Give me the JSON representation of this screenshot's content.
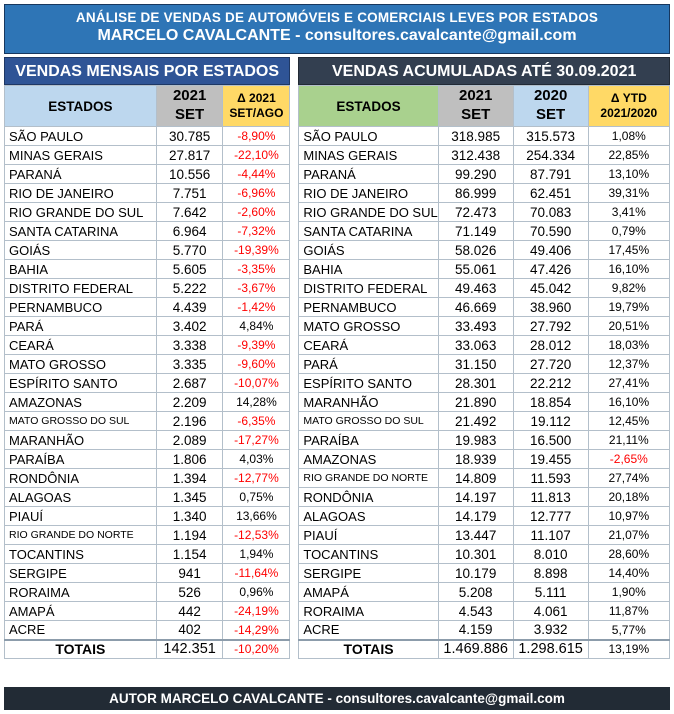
{
  "banner": {
    "line1": "ANÁLISE DE VENDAS DE AUTOMÓVEIS E COMERCIAIS LEVES POR ESTADOS",
    "line2": "MARCELO CAVALCANTE - consultores.cavalcante@gmail.com"
  },
  "footer": {
    "text": "AUTOR MARCELO CAVALCANTE - consultores.cavalcante@gmail.com"
  },
  "colors": {
    "banner_blue": "#2e75b6",
    "left_title_navy": "#2f5496",
    "right_title_slate": "#333f50",
    "footer_dark": "#222b35",
    "header_light_blue": "#bdd7ee",
    "header_gray": "#bfbfbf",
    "header_yellow": "#ffd966",
    "header_green": "#a9d18e",
    "negative_red": "#ff0000"
  },
  "monthly_table": {
    "title": "VENDAS MENSAIS POR ESTADOS",
    "headers": [
      "ESTADOS",
      "2021\nSET",
      "Δ 2021\nSET/AGO"
    ],
    "rows": [
      {
        "state": "SÃO PAULO",
        "v2021": "30.785",
        "delta": "-8,90%"
      },
      {
        "state": "MINAS GERAIS",
        "v2021": "27.817",
        "delta": "-22,10%"
      },
      {
        "state": "PARANÁ",
        "v2021": "10.556",
        "delta": "-4,44%"
      },
      {
        "state": "RIO DE JANEIRO",
        "v2021": "7.751",
        "delta": "-6,96%"
      },
      {
        "state": "RIO GRANDE DO SUL",
        "v2021": "7.642",
        "delta": "-2,60%"
      },
      {
        "state": "SANTA CATARINA",
        "v2021": "6.964",
        "delta": "-7,32%"
      },
      {
        "state": "GOIÁS",
        "v2021": "5.770",
        "delta": "-19,39%"
      },
      {
        "state": "BAHIA",
        "v2021": "5.605",
        "delta": "-3,35%"
      },
      {
        "state": "DISTRITO FEDERAL",
        "v2021": "5.222",
        "delta": "-3,67%"
      },
      {
        "state": "PERNAMBUCO",
        "v2021": "4.439",
        "delta": "-1,42%"
      },
      {
        "state": "PARÁ",
        "v2021": "3.402",
        "delta": "4,84%"
      },
      {
        "state": "CEARÁ",
        "v2021": "3.338",
        "delta": "-9,39%"
      },
      {
        "state": "MATO GROSSO",
        "v2021": "3.335",
        "delta": "-9,60%"
      },
      {
        "state": "ESPÍRITO SANTO",
        "v2021": "2.687",
        "delta": "-10,07%"
      },
      {
        "state": "AMAZONAS",
        "v2021": "2.209",
        "delta": "14,28%"
      },
      {
        "state": "MATO GROSSO DO SUL",
        "v2021": "2.196",
        "delta": "-6,35%"
      },
      {
        "state": "MARANHÃO",
        "v2021": "2.089",
        "delta": "-17,27%"
      },
      {
        "state": "PARAÍBA",
        "v2021": "1.806",
        "delta": "4,03%"
      },
      {
        "state": "RONDÔNIA",
        "v2021": "1.394",
        "delta": "-12,77%"
      },
      {
        "state": "ALAGOAS",
        "v2021": "1.345",
        "delta": "0,75%"
      },
      {
        "state": "PIAUÍ",
        "v2021": "1.340",
        "delta": "13,66%"
      },
      {
        "state": "RIO GRANDE DO NORTE",
        "v2021": "1.194",
        "delta": "-12,53%"
      },
      {
        "state": "TOCANTINS",
        "v2021": "1.154",
        "delta": "1,94%"
      },
      {
        "state": "SERGIPE",
        "v2021": "941",
        "delta": "-11,64%"
      },
      {
        "state": "RORAIMA",
        "v2021": "526",
        "delta": "0,96%"
      },
      {
        "state": "AMAPÁ",
        "v2021": "442",
        "delta": "-24,19%"
      },
      {
        "state": "ACRE",
        "v2021": "402",
        "delta": "-14,29%"
      }
    ],
    "totals": {
      "label": "TOTAIS",
      "v2021": "142.351",
      "delta": "-10,20%"
    }
  },
  "ytd_table": {
    "title": "VENDAS ACUMULADAS ATÉ 30.09.2021",
    "headers": [
      "ESTADOS",
      "2021\nSET",
      "2020\nSET",
      "Δ YTD\n2021/2020"
    ],
    "rows": [
      {
        "state": "SÃO PAULO",
        "v2021": "318.985",
        "v2020": "315.573",
        "ytd": "1,08%"
      },
      {
        "state": "MINAS GERAIS",
        "v2021": "312.438",
        "v2020": "254.334",
        "ytd": "22,85%"
      },
      {
        "state": "PARANÁ",
        "v2021": "99.290",
        "v2020": "87.791",
        "ytd": "13,10%"
      },
      {
        "state": "RIO DE JANEIRO",
        "v2021": "86.999",
        "v2020": "62.451",
        "ytd": "39,31%"
      },
      {
        "state": "RIO GRANDE DO SUL",
        "v2021": "72.473",
        "v2020": "70.083",
        "ytd": "3,41%"
      },
      {
        "state": "SANTA CATARINA",
        "v2021": "71.149",
        "v2020": "70.590",
        "ytd": "0,79%"
      },
      {
        "state": "GOIÁS",
        "v2021": "58.026",
        "v2020": "49.406",
        "ytd": "17,45%"
      },
      {
        "state": "BAHIA",
        "v2021": "55.061",
        "v2020": "47.426",
        "ytd": "16,10%"
      },
      {
        "state": "DISTRITO FEDERAL",
        "v2021": "49.463",
        "v2020": "45.042",
        "ytd": "9,82%"
      },
      {
        "state": "PERNAMBUCO",
        "v2021": "46.669",
        "v2020": "38.960",
        "ytd": "19,79%"
      },
      {
        "state": "MATO GROSSO",
        "v2021": "33.493",
        "v2020": "27.792",
        "ytd": "20,51%"
      },
      {
        "state": "CEARÁ",
        "v2021": "33.063",
        "v2020": "28.012",
        "ytd": "18,03%"
      },
      {
        "state": "PARÁ",
        "v2021": "31.150",
        "v2020": "27.720",
        "ytd": "12,37%"
      },
      {
        "state": "ESPÍRITO SANTO",
        "v2021": "28.301",
        "v2020": "22.212",
        "ytd": "27,41%"
      },
      {
        "state": "MARANHÃO",
        "v2021": "21.890",
        "v2020": "18.854",
        "ytd": "16,10%"
      },
      {
        "state": "MATO GROSSO DO SUL",
        "v2021": "21.492",
        "v2020": "19.112",
        "ytd": "12,45%"
      },
      {
        "state": "PARAÍBA",
        "v2021": "19.983",
        "v2020": "16.500",
        "ytd": "21,11%"
      },
      {
        "state": "AMAZONAS",
        "v2021": "18.939",
        "v2020": "19.455",
        "ytd": "-2,65%"
      },
      {
        "state": "RIO GRANDE DO NORTE",
        "v2021": "14.809",
        "v2020": "11.593",
        "ytd": "27,74%"
      },
      {
        "state": "RONDÔNIA",
        "v2021": "14.197",
        "v2020": "11.813",
        "ytd": "20,18%"
      },
      {
        "state": "ALAGOAS",
        "v2021": "14.179",
        "v2020": "12.777",
        "ytd": "10,97%"
      },
      {
        "state": "PIAUÍ",
        "v2021": "13.447",
        "v2020": "11.107",
        "ytd": "21,07%"
      },
      {
        "state": "TOCANTINS",
        "v2021": "10.301",
        "v2020": "8.010",
        "ytd": "28,60%"
      },
      {
        "state": "SERGIPE",
        "v2021": "10.179",
        "v2020": "8.898",
        "ytd": "14,40%"
      },
      {
        "state": "AMAPÁ",
        "v2021": "5.208",
        "v2020": "5.111",
        "ytd": "1,90%"
      },
      {
        "state": "RORAIMA",
        "v2021": "4.543",
        "v2020": "4.061",
        "ytd": "11,87%"
      },
      {
        "state": "ACRE",
        "v2021": "4.159",
        "v2020": "3.932",
        "ytd": "5,77%"
      }
    ],
    "totals": {
      "label": "TOTAIS",
      "v2021": "1.469.886",
      "v2020": "1.298.615",
      "ytd": "13,19%"
    }
  }
}
